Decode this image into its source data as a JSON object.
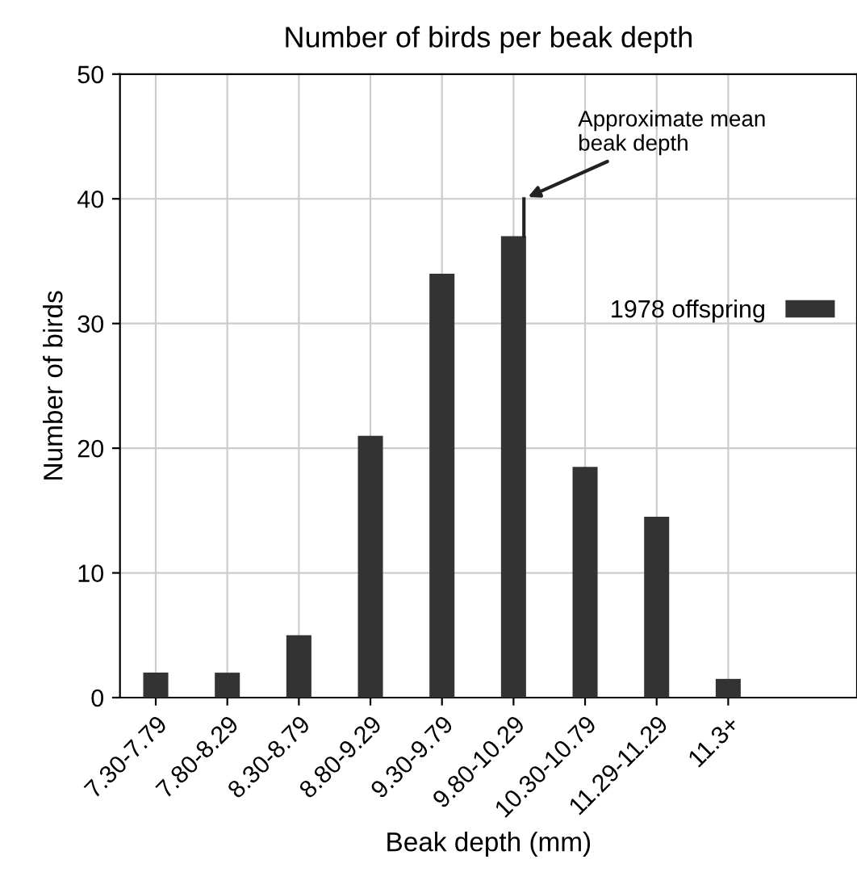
{
  "chart_data": {
    "type": "bar",
    "title": "Number of birds per beak depth",
    "xlabel": "Beak depth (mm)",
    "ylabel": "Number of birds",
    "categories": [
      "7.30-7.79",
      "7.80-8.29",
      "8.30-8.79",
      "8.80-9.29",
      "9.30-9.79",
      "9.80-10.29",
      "10.30-10.79",
      "11.29-11.29",
      "11.3+"
    ],
    "series": [
      {
        "name": "1978 offspring",
        "color": "#333333",
        "values": [
          2,
          2,
          5,
          21,
          34,
          37,
          18.5,
          14.5,
          1.5
        ]
      }
    ],
    "ylim": [
      0,
      50
    ],
    "yticks": [
      0,
      10,
      20,
      30,
      40,
      50
    ],
    "grid": true,
    "legend": "right",
    "annotations": [
      "Approximate mean\nbeak depth"
    ]
  }
}
